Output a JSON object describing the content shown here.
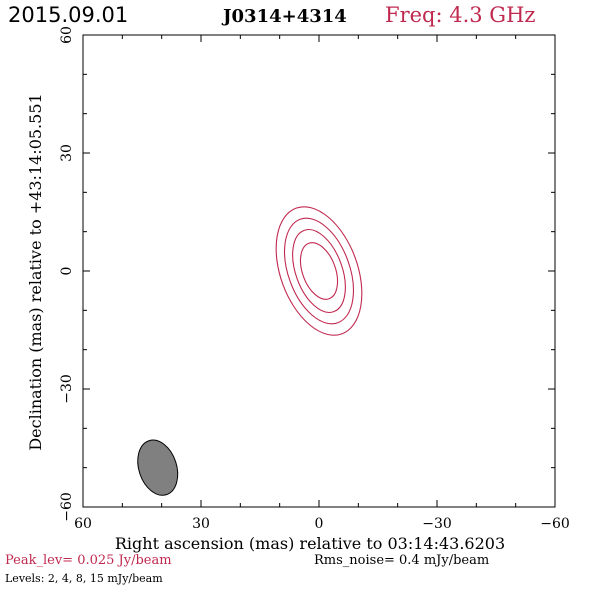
{
  "header": {
    "date": "2015.09.01",
    "source": "J0314+4314",
    "frequency": "Freq: 4.3 GHz"
  },
  "footer": {
    "peak": "Peak_lev=  0.025 Jy/beam",
    "rms": "Rms_noise=   0.4 mJy/beam",
    "levels": "Levels:   2,   4,   8,  15 mJy/beam"
  },
  "colors": {
    "accent": "#c0294f",
    "beam_fill": "#808080",
    "axis": "#000000"
  },
  "chart_data": {
    "type": "contour",
    "xlabel": "Right ascension (mas) relative to 03:14:43.6203",
    "ylabel": "Declination (mas) relative to +43:14:05.551",
    "xlim": [
      60,
      -60
    ],
    "ylim": [
      -60,
      60
    ],
    "x_ticks": [
      60,
      30,
      0,
      -30,
      -60
    ],
    "y_ticks": [
      -60,
      -30,
      0,
      30,
      60
    ],
    "x_tick_labels": [
      "60",
      "30",
      "0",
      "−30",
      "−60"
    ],
    "y_tick_labels": [
      "−60",
      "−30",
      "0",
      "30",
      "60"
    ],
    "minor_tick_step": 10,
    "contour_levels_mJy": [
      2,
      4,
      8,
      15
    ],
    "contour_center": [
      0,
      0
    ],
    "contour_rotation_deg": 20,
    "contours": [
      {
        "level": 2,
        "semi_major": 17,
        "semi_minor": 9.8
      },
      {
        "level": 4,
        "semi_major": 14,
        "semi_minor": 7.8
      },
      {
        "level": 8,
        "semi_major": 11,
        "semi_minor": 5.9
      },
      {
        "level": 15,
        "semi_major": 7.5,
        "semi_minor": 4.2
      }
    ],
    "beam": {
      "center": [
        41,
        -50
      ],
      "semi_major": 7.2,
      "semi_minor": 4.8,
      "rotation_deg": 18
    }
  }
}
